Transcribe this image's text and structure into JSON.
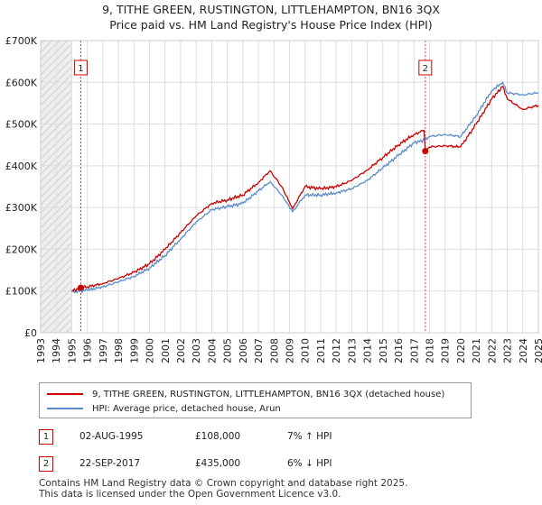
{
  "title_line1": "9, TITHE GREEN, RUSTINGTON, LITTLEHAMPTON, BN16 3QX",
  "title_line2": "Price paid vs. HM Land Registry's House Price Index (HPI)",
  "chart_data": {
    "type": "line",
    "title": "9, TITHE GREEN, RUSTINGTON, LITTLEHAMPTON, BN16 3QX — Price paid vs. HM Land Registry's House Price Index (HPI)",
    "xlim": [
      1993,
      2025
    ],
    "ylim": [
      0,
      700000
    ],
    "x_ticks": [
      "1993",
      "1994",
      "1995",
      "1996",
      "1997",
      "1998",
      "1999",
      "2000",
      "2001",
      "2002",
      "2003",
      "2004",
      "2005",
      "2006",
      "2007",
      "2008",
      "2009",
      "2010",
      "2011",
      "2012",
      "2013",
      "2014",
      "2015",
      "2016",
      "2017",
      "2018",
      "2019",
      "2020",
      "2021",
      "2022",
      "2023",
      "2024",
      "2025"
    ],
    "y_ticks": [
      {
        "value": 0,
        "label": "£0"
      },
      {
        "value": 100000,
        "label": "£100K"
      },
      {
        "value": 200000,
        "label": "£200K"
      },
      {
        "value": 300000,
        "label": "£300K"
      },
      {
        "value": 400000,
        "label": "£400K"
      },
      {
        "value": 500000,
        "label": "£500K"
      },
      {
        "value": 600000,
        "label": "£600K"
      },
      {
        "value": 700000,
        "label": "£700K"
      }
    ],
    "grid": true,
    "shaded_regions": [
      [
        1993,
        1995.0
      ],
      [
        2025.0,
        2025.3
      ]
    ],
    "series": [
      {
        "name": "9, TITHE GREEN, RUSTINGTON, LITTLEHAMPTON, BN16 3QX (detached house)",
        "color": "#cc0000",
        "x": [
          1995.0,
          1995.58,
          1996.0,
          1997.0,
          1998.0,
          1999.0,
          2000.0,
          2001.0,
          2002.0,
          2003.0,
          2004.0,
          2005.0,
          2006.0,
          2007.0,
          2007.75,
          2008.5,
          2009.2,
          2010.0,
          2011.0,
          2012.0,
          2013.0,
          2014.0,
          2015.0,
          2016.0,
          2017.0,
          2017.65,
          2017.73,
          2018.0,
          2019.0,
          2020.0,
          2021.0,
          2022.0,
          2022.7,
          2023.0,
          2024.0,
          2025.0
        ],
        "y": [
          100000,
          108000,
          110000,
          118000,
          130000,
          145000,
          165000,
          200000,
          240000,
          280000,
          310000,
          318000,
          330000,
          360000,
          388000,
          350000,
          298000,
          350000,
          345000,
          350000,
          365000,
          390000,
          420000,
          450000,
          475000,
          485000,
          435000,
          445000,
          448000,
          445000,
          500000,
          560000,
          590000,
          560000,
          535000,
          545000
        ]
      },
      {
        "name": "HPI: Average price, detached house, Arun",
        "color": "#5b8ccc",
        "x": [
          1995.0,
          1996.0,
          1997.0,
          1998.0,
          1999.0,
          2000.0,
          2001.0,
          2002.0,
          2003.0,
          2004.0,
          2005.0,
          2006.0,
          2007.0,
          2007.75,
          2008.5,
          2009.2,
          2010.0,
          2011.0,
          2012.0,
          2013.0,
          2014.0,
          2015.0,
          2016.0,
          2017.0,
          2017.7,
          2018.0,
          2019.0,
          2020.0,
          2021.0,
          2022.0,
          2022.7,
          2023.0,
          2024.0,
          2025.0
        ],
        "y": [
          98000,
          102000,
          110000,
          122000,
          135000,
          155000,
          185000,
          225000,
          265000,
          295000,
          302000,
          310000,
          340000,
          362000,
          330000,
          290000,
          330000,
          330000,
          335000,
          345000,
          365000,
          395000,
          425000,
          455000,
          462000,
          470000,
          475000,
          470000,
          520000,
          580000,
          600000,
          575000,
          570000,
          575000
        ]
      }
    ],
    "annotations": [
      {
        "label": "1",
        "x": 1995.58,
        "y": 108000
      },
      {
        "label": "2",
        "x": 2017.73,
        "y": 435000
      }
    ]
  },
  "legend": {
    "items": [
      {
        "label": "9, TITHE GREEN, RUSTINGTON, LITTLEHAMPTON, BN16 3QX (detached house)",
        "color": "#cc0000"
      },
      {
        "label": "HPI: Average price, detached house, Arun",
        "color": "#5b8ccc"
      }
    ]
  },
  "transactions": [
    {
      "num": "1",
      "date": "02-AUG-1995",
      "price": "£108,000",
      "delta": "7% ↑ HPI"
    },
    {
      "num": "2",
      "date": "22-SEP-2017",
      "price": "£435,000",
      "delta": "6% ↓ HPI"
    }
  ],
  "footer": {
    "line1": "Contains HM Land Registry data © Crown copyright and database right 2025.",
    "line2": "This data is licensed under the Open Government Licence v3.0."
  }
}
